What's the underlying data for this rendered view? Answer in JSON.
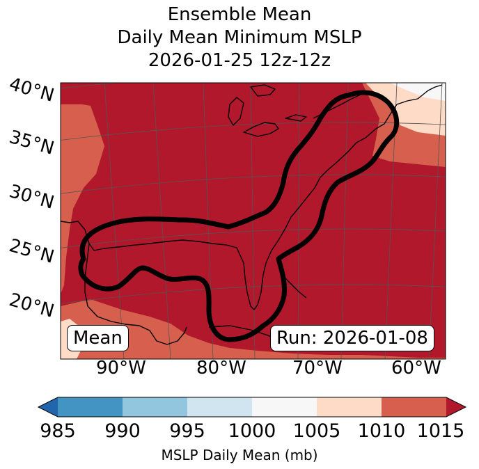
{
  "title": {
    "line1": "Ensemble Mean",
    "line2": "Daily Mean Minimum MSLP",
    "line3": "2026-01-25 12z-12z"
  },
  "map": {
    "lat_labels": [
      "40°N",
      "35°N",
      "30°N",
      "25°N",
      "20°N"
    ],
    "lon_labels": [
      "90°W",
      "80°W",
      "70°W",
      "60°W"
    ],
    "mean_box": "Mean",
    "run_box": "Run: 2026-01-08",
    "colors": {
      "fill_1010_1015": "#b2182b",
      "fill_1005_1010": "#d6604d",
      "fill_1000_1005": "#fddbc7",
      "fill_995_1000": "#f7f7f7",
      "contour": "#000000",
      "coast": "#000000",
      "grid": "#555555"
    }
  },
  "colorbar": {
    "ticks": [
      "985",
      "990",
      "995",
      "1000",
      "1005",
      "1010",
      "1015"
    ],
    "colors": [
      "#4393c3",
      "#92c5de",
      "#d1e5f0",
      "#f7f7f7",
      "#fddbc7",
      "#d6604d"
    ],
    "under_color": "#2166ac",
    "over_color": "#b2182b",
    "label": "MSLP Daily Mean (mb)"
  }
}
